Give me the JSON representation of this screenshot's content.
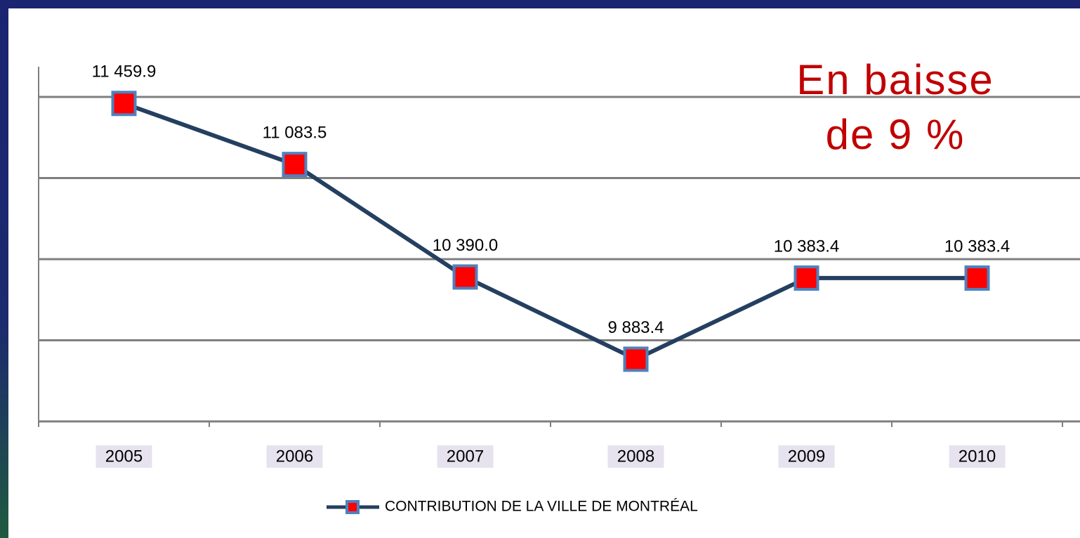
{
  "chart_data": {
    "type": "line",
    "annotation": [
      "En baisse",
      "de 9 %"
    ],
    "categories": [
      "2005",
      "2006",
      "2007",
      "2008",
      "2009",
      "2010"
    ],
    "series": [
      {
        "name": "CONTRIBUTION DE LA VILLE DE MONTRÉAL",
        "color": "#243f60",
        "marker_color": "#ff0000",
        "values": [
          11459.9,
          11083.5,
          10390.0,
          9883.4,
          10383.4,
          10383.4
        ],
        "value_labels": [
          "11 459.9",
          "11 083.5",
          "10 390.0",
          "9 883.4",
          "10 383.4",
          "10 383.4"
        ]
      }
    ],
    "ylim": [
      9500,
      11500
    ],
    "yticks": [
      9500,
      10000,
      10500,
      11000,
      11500
    ],
    "grid": true,
    "legend": "bottom",
    "annotation_color": "#c00000"
  }
}
